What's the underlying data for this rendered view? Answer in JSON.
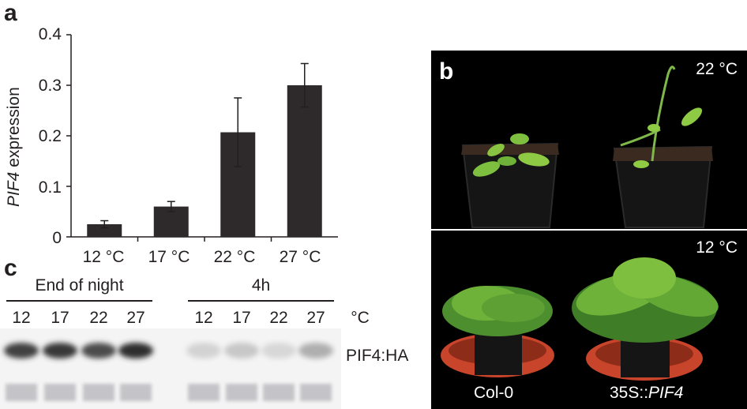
{
  "panel_a": {
    "letter": "a",
    "ylabel_italic": "PIF4",
    "ylabel_rest": " expression",
    "ytick_labels": [
      "0.4",
      "0.3",
      "0.2",
      "0.1",
      "0"
    ]
  },
  "panel_b": {
    "letter": "b",
    "top_label": "22 °C",
    "bottom_label": "12 °C",
    "genotype_left": "Col-0",
    "genotype_right_prefix": "35S::",
    "genotype_right_italic": "PIF4"
  },
  "panel_c": {
    "letter": "c",
    "group_left": "End of night",
    "group_right": "4h",
    "lane_labels": [
      "12",
      "17",
      "22",
      "27",
      "12",
      "17",
      "22",
      "27"
    ],
    "unit": "°C",
    "band_label": "PIF4:HA",
    "band_intensity": [
      0.85,
      0.9,
      0.8,
      0.95,
      0.12,
      0.18,
      0.1,
      0.3
    ]
  },
  "chart_data": {
    "type": "bar",
    "categories": [
      "12 °C",
      "17 °C",
      "22 °C",
      "27 °C"
    ],
    "values": [
      0.025,
      0.06,
      0.207,
      0.3
    ],
    "errors": [
      0.007,
      0.01,
      0.068,
      0.043
    ],
    "xlabel": "",
    "ylabel": "PIF4 expression",
    "ylim": [
      0,
      0.4
    ],
    "bar_color": "#2e2a2b"
  }
}
